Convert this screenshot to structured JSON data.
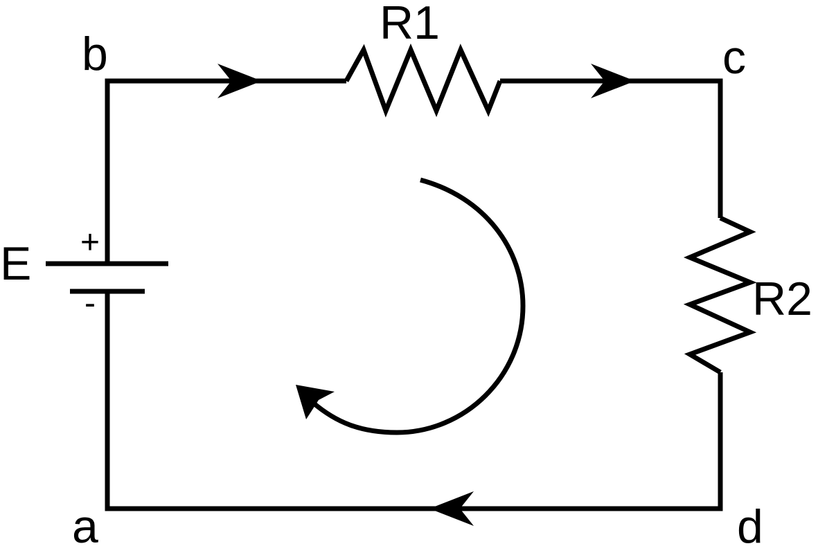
{
  "nodes": {
    "a": "a",
    "b": "b",
    "c": "c",
    "d": "d"
  },
  "components": {
    "source": {
      "label": "E",
      "positive": "+",
      "negative": "-"
    },
    "resistor_1": {
      "label": "R1"
    },
    "resistor_2": {
      "label": "R2"
    }
  },
  "colors": {
    "stroke": "#000000",
    "background": "#ffffff"
  }
}
